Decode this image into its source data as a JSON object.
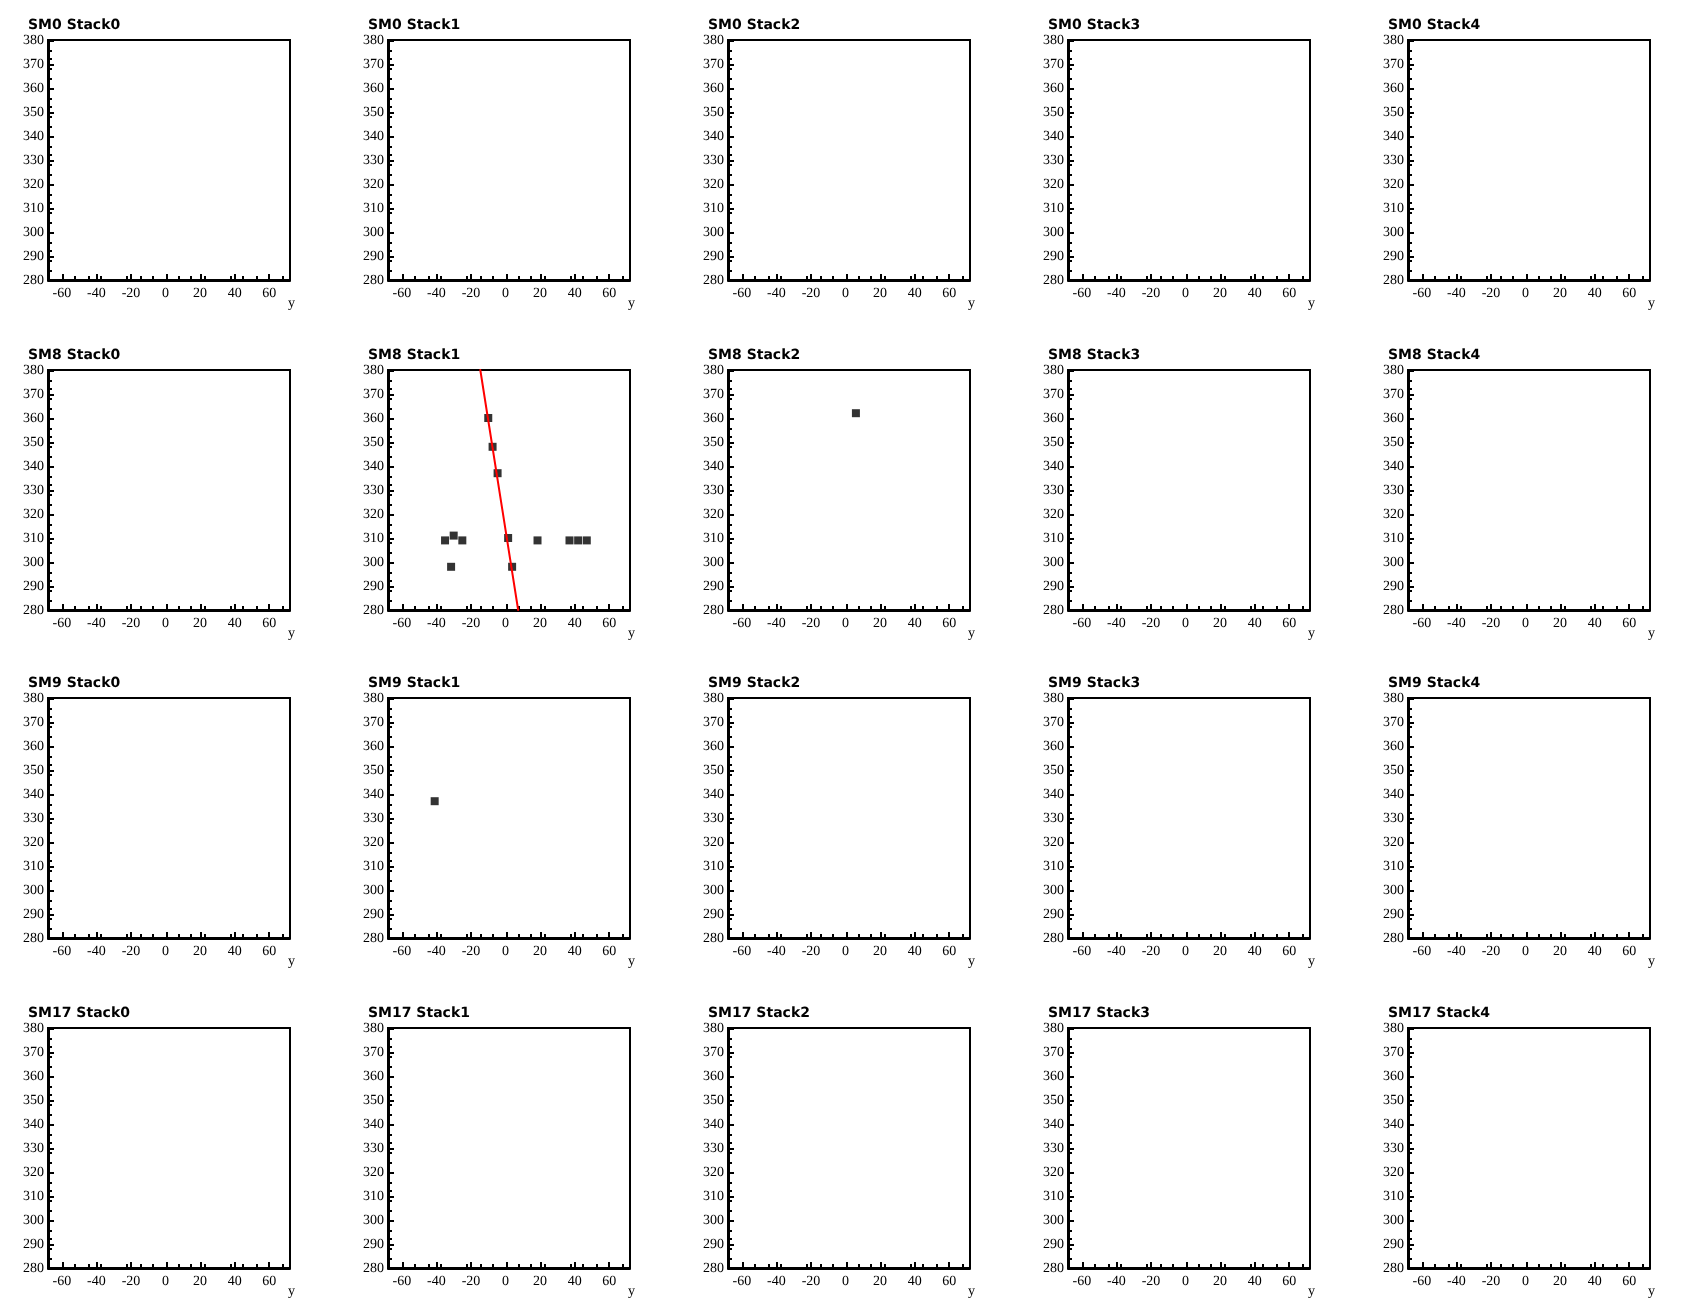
{
  "chart_data": [
    {
      "type": "scatter",
      "title": "SM0 Stack0",
      "xlabel": "y",
      "xlim": [
        -68,
        72
      ],
      "ylim": [
        280,
        380
      ],
      "xticks": [
        -60,
        -40,
        -20,
        0,
        20,
        40,
        60
      ],
      "yticks": [
        280,
        290,
        300,
        310,
        320,
        330,
        340,
        350,
        360,
        370,
        380
      ],
      "grid": false,
      "marker": "square"
    },
    {
      "type": "scatter",
      "title": "SM0 Stack1",
      "xlabel": "y",
      "xlim": [
        -68,
        72
      ],
      "ylim": [
        280,
        380
      ],
      "xticks": [
        -60,
        -40,
        -20,
        0,
        20,
        40,
        60
      ],
      "yticks": [
        280,
        290,
        300,
        310,
        320,
        330,
        340,
        350,
        360,
        370,
        380
      ],
      "grid": false,
      "marker": "square"
    },
    {
      "type": "scatter",
      "title": "SM0 Stack2",
      "xlabel": "y",
      "xlim": [
        -68,
        72
      ],
      "ylim": [
        280,
        380
      ],
      "xticks": [
        -60,
        -40,
        -20,
        0,
        20,
        40,
        60
      ],
      "yticks": [
        280,
        290,
        300,
        310,
        320,
        330,
        340,
        350,
        360,
        370,
        380
      ],
      "grid": false,
      "marker": "square"
    },
    {
      "type": "scatter",
      "title": "SM0 Stack3",
      "xlabel": "y",
      "xlim": [
        -68,
        72
      ],
      "ylim": [
        280,
        380
      ],
      "xticks": [
        -60,
        -40,
        -20,
        0,
        20,
        40,
        60
      ],
      "yticks": [
        280,
        290,
        300,
        310,
        320,
        330,
        340,
        350,
        360,
        370,
        380
      ],
      "grid": false,
      "marker": "square"
    },
    {
      "type": "scatter",
      "title": "SM0 Stack4",
      "xlabel": "y",
      "xlim": [
        -68,
        72
      ],
      "ylim": [
        280,
        380
      ],
      "xticks": [
        -60,
        -40,
        -20,
        0,
        20,
        40,
        60
      ],
      "yticks": [
        280,
        290,
        300,
        310,
        320,
        330,
        340,
        350,
        360,
        370,
        380
      ],
      "grid": false,
      "marker": "square"
    },
    {
      "type": "scatter",
      "title": "SM8 Stack0",
      "xlabel": "y",
      "xlim": [
        -68,
        72
      ],
      "ylim": [
        280,
        380
      ],
      "xticks": [
        -60,
        -40,
        -20,
        0,
        20,
        40,
        60
      ],
      "yticks": [
        280,
        290,
        300,
        310,
        320,
        330,
        340,
        350,
        360,
        370,
        380
      ],
      "grid": false,
      "marker": "square"
    },
    {
      "type": "scatter",
      "title": "SM8 Stack1",
      "xlabel": "y",
      "xlim": [
        -68,
        72
      ],
      "ylim": [
        280,
        380
      ],
      "xticks": [
        -60,
        -40,
        -20,
        0,
        20,
        40,
        60
      ],
      "yticks": [
        280,
        290,
        300,
        310,
        320,
        330,
        340,
        350,
        360,
        370,
        380
      ],
      "grid": false,
      "marker": "square",
      "series": [
        {
          "type": "scatter",
          "color": "#000000",
          "x": [
            -10,
            -7.5,
            -4.6,
            1.5,
            3.8,
            -35,
            -30,
            -25,
            -31.5,
            18.5,
            37,
            42,
            47
          ],
          "values": [
            360,
            348,
            337,
            310,
            298,
            309,
            311,
            309,
            298,
            309,
            309,
            309,
            309
          ]
        },
        {
          "type": "line",
          "color": "#ff0000",
          "marker": "none",
          "x": [
            -14.6,
            7.3
          ],
          "values": [
            380,
            280
          ]
        }
      ]
    },
    {
      "type": "scatter",
      "title": "SM8 Stack2",
      "xlabel": "y",
      "xlim": [
        -68,
        72
      ],
      "ylim": [
        280,
        380
      ],
      "xticks": [
        -60,
        -40,
        -20,
        0,
        20,
        40,
        60
      ],
      "yticks": [
        280,
        290,
        300,
        310,
        320,
        330,
        340,
        350,
        360,
        370,
        380
      ],
      "grid": false,
      "marker": "square",
      "series": [
        {
          "type": "scatter",
          "color": "#000000",
          "x": [
            6
          ],
          "values": [
            362
          ]
        }
      ]
    },
    {
      "type": "scatter",
      "title": "SM8 Stack3",
      "xlabel": "y",
      "xlim": [
        -68,
        72
      ],
      "ylim": [
        280,
        380
      ],
      "xticks": [
        -60,
        -40,
        -20,
        0,
        20,
        40,
        60
      ],
      "yticks": [
        280,
        290,
        300,
        310,
        320,
        330,
        340,
        350,
        360,
        370,
        380
      ],
      "grid": false,
      "marker": "square"
    },
    {
      "type": "scatter",
      "title": "SM8 Stack4",
      "xlabel": "y",
      "xlim": [
        -68,
        72
      ],
      "ylim": [
        280,
        380
      ],
      "xticks": [
        -60,
        -40,
        -20,
        0,
        20,
        40,
        60
      ],
      "yticks": [
        280,
        290,
        300,
        310,
        320,
        330,
        340,
        350,
        360,
        370,
        380
      ],
      "grid": false,
      "marker": "square"
    },
    {
      "type": "scatter",
      "title": "SM9 Stack0",
      "xlabel": "y",
      "xlim": [
        -68,
        72
      ],
      "ylim": [
        280,
        380
      ],
      "xticks": [
        -60,
        -40,
        -20,
        0,
        20,
        40,
        60
      ],
      "yticks": [
        280,
        290,
        300,
        310,
        320,
        330,
        340,
        350,
        360,
        370,
        380
      ],
      "grid": false,
      "marker": "square"
    },
    {
      "type": "scatter",
      "title": "SM9 Stack1",
      "xlabel": "y",
      "xlim": [
        -68,
        72
      ],
      "ylim": [
        280,
        380
      ],
      "xticks": [
        -60,
        -40,
        -20,
        0,
        20,
        40,
        60
      ],
      "yticks": [
        280,
        290,
        300,
        310,
        320,
        330,
        340,
        350,
        360,
        370,
        380
      ],
      "grid": false,
      "marker": "square",
      "series": [
        {
          "type": "scatter",
          "color": "#000000",
          "x": [
            -41
          ],
          "values": [
            337
          ]
        }
      ]
    },
    {
      "type": "scatter",
      "title": "SM9 Stack2",
      "xlabel": "y",
      "xlim": [
        -68,
        72
      ],
      "ylim": [
        280,
        380
      ],
      "xticks": [
        -60,
        -40,
        -20,
        0,
        20,
        40,
        60
      ],
      "yticks": [
        280,
        290,
        300,
        310,
        320,
        330,
        340,
        350,
        360,
        370,
        380
      ],
      "grid": false,
      "marker": "square"
    },
    {
      "type": "scatter",
      "title": "SM9 Stack3",
      "xlabel": "y",
      "xlim": [
        -68,
        72
      ],
      "ylim": [
        280,
        380
      ],
      "xticks": [
        -60,
        -40,
        -20,
        0,
        20,
        40,
        60
      ],
      "yticks": [
        280,
        290,
        300,
        310,
        320,
        330,
        340,
        350,
        360,
        370,
        380
      ],
      "grid": false,
      "marker": "square"
    },
    {
      "type": "scatter",
      "title": "SM9 Stack4",
      "xlabel": "y",
      "xlim": [
        -68,
        72
      ],
      "ylim": [
        280,
        380
      ],
      "xticks": [
        -60,
        -40,
        -20,
        0,
        20,
        40,
        60
      ],
      "yticks": [
        280,
        290,
        300,
        310,
        320,
        330,
        340,
        350,
        360,
        370,
        380
      ],
      "grid": false,
      "marker": "square"
    },
    {
      "type": "scatter",
      "title": "SM17 Stack0",
      "xlabel": "y",
      "xlim": [
        -68,
        72
      ],
      "ylim": [
        280,
        380
      ],
      "xticks": [
        -60,
        -40,
        -20,
        0,
        20,
        40,
        60
      ],
      "yticks": [
        280,
        290,
        300,
        310,
        320,
        330,
        340,
        350,
        360,
        370,
        380
      ],
      "grid": false,
      "marker": "square"
    },
    {
      "type": "scatter",
      "title": "SM17 Stack1",
      "xlabel": "y",
      "xlim": [
        -68,
        72
      ],
      "ylim": [
        280,
        380
      ],
      "xticks": [
        -60,
        -40,
        -20,
        0,
        20,
        40,
        60
      ],
      "yticks": [
        280,
        290,
        300,
        310,
        320,
        330,
        340,
        350,
        360,
        370,
        380
      ],
      "grid": false,
      "marker": "square"
    },
    {
      "type": "scatter",
      "title": "SM17 Stack2",
      "xlabel": "y",
      "xlim": [
        -68,
        72
      ],
      "ylim": [
        280,
        380
      ],
      "xticks": [
        -60,
        -40,
        -20,
        0,
        20,
        40,
        60
      ],
      "yticks": [
        280,
        290,
        300,
        310,
        320,
        330,
        340,
        350,
        360,
        370,
        380
      ],
      "grid": false,
      "marker": "square"
    },
    {
      "type": "scatter",
      "title": "SM17 Stack3",
      "xlabel": "y",
      "xlim": [
        -68,
        72
      ],
      "ylim": [
        280,
        380
      ],
      "xticks": [
        -60,
        -40,
        -20,
        0,
        20,
        40,
        60
      ],
      "yticks": [
        280,
        290,
        300,
        310,
        320,
        330,
        340,
        350,
        360,
        370,
        380
      ],
      "grid": false,
      "marker": "square"
    },
    {
      "type": "scatter",
      "title": "SM17 Stack4",
      "xlabel": "y",
      "xlim": [
        -68,
        72
      ],
      "ylim": [
        280,
        380
      ],
      "xticks": [
        -60,
        -40,
        -20,
        0,
        20,
        40,
        60
      ],
      "yticks": [
        280,
        290,
        300,
        310,
        320,
        330,
        340,
        350,
        360,
        370,
        380
      ],
      "grid": false,
      "marker": "square"
    }
  ]
}
